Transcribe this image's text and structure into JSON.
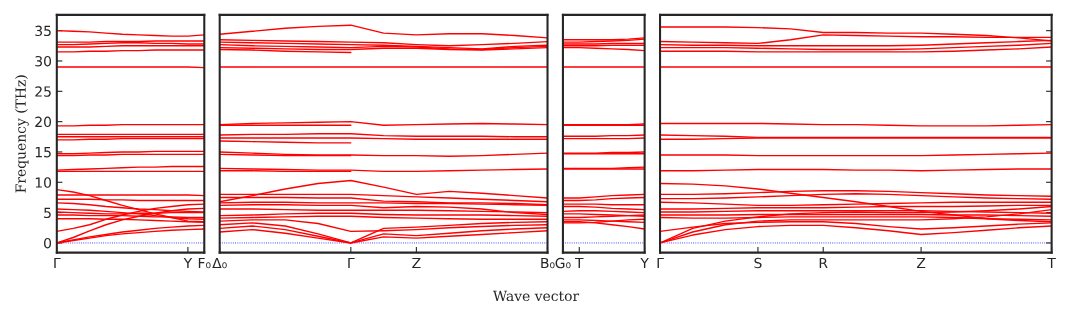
{
  "chart_data": [
    {
      "type": "line",
      "ylabel": "Frequency (THz)",
      "ylim": [
        -1.6,
        37.6
      ],
      "yticks": [
        0,
        5,
        10,
        15,
        20,
        25,
        30,
        35
      ],
      "grid": false,
      "legend": false,
      "ref_lines": [
        {
          "axis": "y",
          "value": 0,
          "color": "#0000ff",
          "line_style": "dotted"
        }
      ],
      "categories": [
        "Γ",
        null,
        null,
        null,
        null,
        null,
        null,
        null,
        "Y",
        "F₀"
      ],
      "series": [
        {
          "color": "#ff0000",
          "values": [
            35.0,
            34.9,
            34.8,
            34.6,
            34.4,
            34.3,
            34.2,
            34.1,
            34.1,
            34.3
          ]
        },
        {
          "color": "#ff0000",
          "values": [
            33.1,
            33.1,
            33.1,
            33.2,
            33.2,
            33.2,
            33.3,
            33.3,
            33.3,
            33.3
          ]
        },
        {
          "color": "#ff0000",
          "values": [
            32.7,
            32.7,
            32.8,
            32.9,
            33.0,
            33.0,
            32.9,
            32.9,
            32.8,
            32.8
          ]
        },
        {
          "color": "#ff0000",
          "values": [
            32.3,
            32.3,
            32.3,
            32.4,
            32.5,
            32.5,
            32.5,
            32.5,
            32.5,
            32.5
          ]
        },
        {
          "color": "#ff0000",
          "values": [
            31.5,
            31.5,
            31.6,
            31.6,
            31.7,
            31.7,
            31.8,
            31.8,
            31.8,
            31.8
          ]
        },
        {
          "color": "#ff0000",
          "values": [
            29.0,
            29.0,
            29.0,
            29.0,
            29.0,
            29.0,
            29.0,
            29.0,
            29.0,
            28.9
          ]
        },
        {
          "color": "#ff0000",
          "values": [
            19.3,
            19.3,
            19.4,
            19.4,
            19.5,
            19.5,
            19.5,
            19.5,
            19.5,
            19.5
          ]
        },
        {
          "color": "#ff0000",
          "values": [
            17.9,
            17.9,
            17.9,
            17.9,
            17.9,
            17.9,
            17.9,
            17.9,
            17.9,
            17.9
          ]
        },
        {
          "color": "#ff0000",
          "values": [
            17.5,
            17.5,
            17.5,
            17.5,
            17.5,
            17.5,
            17.5,
            17.5,
            17.5,
            17.5
          ]
        },
        {
          "color": "#ff0000",
          "values": [
            17.0,
            17.0,
            17.1,
            17.1,
            17.2,
            17.2,
            17.2,
            17.2,
            17.2,
            17.2
          ]
        },
        {
          "color": "#ff0000",
          "values": [
            14.4,
            14.4,
            14.5,
            14.5,
            14.6,
            14.6,
            14.6,
            14.6,
            14.6,
            14.6
          ]
        },
        {
          "color": "#ff0000",
          "values": [
            14.7,
            14.7,
            14.8,
            14.9,
            15.0,
            15.0,
            15.1,
            15.1,
            15.1,
            15.1
          ]
        },
        {
          "color": "#ff0000",
          "values": [
            11.8,
            11.8,
            11.8,
            11.8,
            11.8,
            11.8,
            11.8,
            11.8,
            11.8,
            11.8
          ]
        },
        {
          "color": "#ff0000",
          "values": [
            12.0,
            12.1,
            12.2,
            12.3,
            12.4,
            12.5,
            12.5,
            12.6,
            12.6,
            12.6
          ]
        },
        {
          "color": "#ff0000",
          "values": [
            8.8,
            8.4,
            7.8,
            7.0,
            6.2,
            5.5,
            4.8,
            4.2,
            3.6,
            3.5
          ]
        },
        {
          "color": "#ff0000",
          "values": [
            7.9,
            7.9,
            7.9,
            7.9,
            7.9,
            7.9,
            7.9,
            7.9,
            7.9,
            7.8
          ]
        },
        {
          "color": "#ff0000",
          "values": [
            7.2,
            7.2,
            7.2,
            7.1,
            7.1,
            7.0,
            7.0,
            7.0,
            7.0,
            7.0
          ]
        },
        {
          "color": "#ff0000",
          "values": [
            6.6,
            6.5,
            6.3,
            6.0,
            5.8,
            5.6,
            5.5,
            5.3,
            5.2,
            5.1
          ]
        },
        {
          "color": "#ff0000",
          "values": [
            5.6,
            5.5,
            5.4,
            5.2,
            5.0,
            4.8,
            4.5,
            4.2,
            4.0,
            3.9
          ]
        },
        {
          "color": "#ff0000",
          "values": [
            5.1,
            5.0,
            4.9,
            4.8,
            4.8,
            4.9,
            4.9,
            5.0,
            5.0,
            5.0
          ]
        },
        {
          "color": "#ff0000",
          "values": [
            4.6,
            4.6,
            4.5,
            4.5,
            4.5,
            4.4,
            4.3,
            4.3,
            4.2,
            4.2
          ]
        },
        {
          "color": "#ff0000",
          "values": [
            4.0,
            4.0,
            4.0,
            3.9,
            3.9,
            3.8,
            3.7,
            3.6,
            3.5,
            3.4
          ]
        },
        {
          "color": "#ff0000",
          "values": [
            1.9,
            2.4,
            3.0,
            3.9,
            4.6,
            5.2,
            5.7,
            6.0,
            6.3,
            6.4
          ]
        },
        {
          "color": "#ff0000",
          "values": [
            0,
            0.9,
            2.0,
            3.0,
            3.8,
            4.4,
            4.9,
            5.3,
            5.6,
            5.7
          ]
        },
        {
          "color": "#ff0000",
          "values": [
            0,
            0.5,
            1.0,
            1.4,
            1.8,
            2.1,
            2.4,
            2.6,
            2.8,
            2.9
          ]
        },
        {
          "color": "#ff0000",
          "values": [
            0,
            0.4,
            0.8,
            1.2,
            1.5,
            1.7,
            1.9,
            2.1,
            2.2,
            2.3
          ]
        }
      ]
    },
    {
      "type": "line",
      "ylim": [
        -1.6,
        37.6
      ],
      "yticks": [
        0,
        5,
        10,
        15,
        20,
        25,
        30,
        35
      ],
      "tick_labels": "x",
      "grid": false,
      "legend": false,
      "ref_lines": [
        {
          "axis": "y",
          "value": 0,
          "color": "#0000ff",
          "line_style": "dotted"
        }
      ],
      "categories": [
        "Δ₀",
        null,
        null,
        null,
        "Γ",
        null,
        "Z",
        null,
        null,
        null,
        "B₀"
      ],
      "series": [
        {
          "color": "#ff0000",
          "values": [
            34.4,
            34.9,
            35.4,
            35.7,
            35.9,
            34.6,
            34.3,
            34.5,
            34.5,
            34.2,
            33.8
          ]
        },
        {
          "color": "#ff0000",
          "values": [
            33.5,
            33.4,
            33.3,
            33.2,
            33.1,
            33.0,
            32.7,
            32.5,
            32.7,
            32.9,
            33.2
          ]
        },
        {
          "color": "#ff0000",
          "values": [
            33.1,
            33.0,
            32.9,
            32.8,
            32.7,
            32.6,
            32.4,
            32.2,
            32.0,
            32.4,
            32.6
          ]
        },
        {
          "color": "#ff0000",
          "values": [
            32.7,
            32.5,
            32.4,
            32.3,
            32.2,
            32.4,
            32.3,
            32.0,
            31.9,
            32.2,
            32.4
          ]
        },
        {
          "color": "#ff0000",
          "values": [
            32.2,
            32.1,
            32.0,
            31.9,
            31.9,
            32.1,
            32.1,
            31.9,
            31.8,
            32.0,
            32.2
          ]
        },
        {
          "color": "#ff0000",
          "values": [
            31.9,
            31.8,
            31.6,
            31.5,
            31.4,
            null,
            null,
            null,
            null,
            null,
            null
          ]
        },
        {
          "color": "#ff0000",
          "values": [
            29.0,
            29.0,
            29.0,
            29.0,
            29.0,
            29.0,
            29.0,
            29.0,
            29.0,
            29.0,
            29.0
          ]
        },
        {
          "color": "#ff0000",
          "values": [
            19.5,
            19.7,
            19.8,
            19.9,
            20.0,
            19.4,
            19.5,
            19.6,
            19.7,
            19.6,
            19.5
          ]
        },
        {
          "color": "#ff0000",
          "values": [
            19.4,
            19.4,
            19.4,
            19.4,
            19.4,
            null,
            null,
            null,
            null,
            null,
            null
          ]
        },
        {
          "color": "#ff0000",
          "values": [
            17.8,
            17.9,
            17.9,
            18.0,
            18.0,
            17.7,
            17.6,
            17.6,
            17.6,
            17.5,
            17.5
          ]
        },
        {
          "color": "#ff0000",
          "values": [
            17.3,
            17.3,
            17.3,
            17.3,
            17.3,
            17.2,
            17.1,
            17.1,
            17.1,
            17.1,
            17.1
          ]
        },
        {
          "color": "#ff0000",
          "values": [
            16.8,
            16.7,
            16.6,
            16.5,
            16.5,
            null,
            null,
            null,
            null,
            null,
            null
          ]
        },
        {
          "color": "#ff0000",
          "values": [
            15.0,
            14.8,
            14.6,
            14.5,
            14.5,
            14.4,
            14.4,
            14.3,
            14.4,
            14.6,
            14.8
          ]
        },
        {
          "color": "#ff0000",
          "values": [
            14.6,
            14.5,
            14.4,
            14.4,
            14.4,
            null,
            null,
            null,
            null,
            null,
            null
          ]
        },
        {
          "color": "#ff0000",
          "values": [
            12.3,
            12.2,
            12.1,
            12.0,
            12.0,
            11.8,
            11.8,
            11.9,
            12.0,
            12.1,
            12.2
          ]
        },
        {
          "color": "#ff0000",
          "values": [
            11.9,
            11.9,
            11.8,
            11.8,
            11.8,
            null,
            null,
            null,
            null,
            null,
            null
          ]
        },
        {
          "color": "#ff0000",
          "values": [
            6.8,
            7.8,
            8.9,
            9.8,
            10.3,
            9.2,
            8.0,
            8.5,
            8.2,
            7.8,
            7.4
          ]
        },
        {
          "color": "#ff0000",
          "values": [
            8.0,
            8.0,
            8.0,
            8.0,
            8.0,
            7.8,
            7.6,
            7.4,
            7.2,
            7.0,
            6.8
          ]
        },
        {
          "color": "#ff0000",
          "values": [
            7.5,
            7.5,
            7.5,
            7.4,
            7.4,
            6.9,
            6.8,
            6.6,
            6.6,
            6.5,
            6.3
          ]
        },
        {
          "color": "#ff0000",
          "values": [
            6.6,
            6.7,
            6.7,
            6.6,
            6.6,
            6.6,
            6.5,
            6.5,
            6.4,
            6.3,
            6.2
          ]
        },
        {
          "color": "#ff0000",
          "values": [
            6.2,
            6.3,
            6.3,
            6.2,
            6.2,
            5.8,
            6.0,
            5.9,
            5.6,
            5.0,
            4.7
          ]
        },
        {
          "color": "#ff0000",
          "values": [
            5.6,
            5.6,
            5.5,
            5.4,
            5.4,
            5.4,
            5.4,
            5.3,
            5.2,
            5.1,
            5.0
          ]
        },
        {
          "color": "#ff0000",
          "values": [
            4.5,
            4.6,
            4.8,
            4.9,
            4.9,
            4.7,
            4.6,
            4.6,
            4.6,
            4.5,
            4.4
          ]
        },
        {
          "color": "#ff0000",
          "values": [
            4.1,
            4.2,
            4.3,
            4.4,
            4.4,
            4.2,
            4.1,
            4.0,
            3.9,
            3.9,
            3.9
          ]
        },
        {
          "color": "#ff0000",
          "values": [
            3.6,
            3.8,
            3.8,
            3.2,
            1.9,
            2.0,
            2.2,
            2.5,
            2.7,
            2.9,
            3.0
          ]
        },
        {
          "color": "#ff0000",
          "values": [
            1.8,
            2.2,
            1.6,
            0.8,
            0,
            2.4,
            2.6,
            2.9,
            3.2,
            3.4,
            3.5
          ]
        },
        {
          "color": "#ff0000",
          "values": [
            2.4,
            2.8,
            2.2,
            1.1,
            0,
            1.5,
            1.2,
            1.6,
            2.0,
            2.3,
            2.5
          ]
        },
        {
          "color": "#ff0000",
          "values": [
            3.0,
            3.3,
            2.8,
            1.5,
            0,
            1.0,
            0.8,
            1.1,
            1.4,
            1.7,
            2.0
          ]
        }
      ]
    },
    {
      "type": "line",
      "xlabel": "Wave vector",
      "ylim": [
        -1.6,
        37.6
      ],
      "yticks": [
        0,
        5,
        10,
        15,
        20,
        25,
        30,
        35
      ],
      "tick_labels": "x",
      "grid": false,
      "legend": false,
      "ref_lines": [
        {
          "axis": "y",
          "value": 0,
          "color": "#0000ff",
          "line_style": "dotted"
        }
      ],
      "categories": [
        "G₀",
        "T",
        null,
        null,
        null,
        "Y"
      ],
      "series": [
        {
          "color": "#ff0000",
          "values": [
            33.5,
            33.5,
            33.5,
            33.5,
            33.6,
            33.8
          ]
        },
        {
          "color": "#ff0000",
          "values": [
            33.1,
            33.1,
            33.2,
            33.3,
            33.4,
            33.6
          ]
        },
        {
          "color": "#ff0000",
          "values": [
            32.8,
            32.8,
            32.8,
            32.9,
            32.9,
            32.9
          ]
        },
        {
          "color": "#ff0000",
          "values": [
            32.5,
            32.5,
            32.5,
            32.6,
            32.6,
            32.6
          ]
        },
        {
          "color": "#ff0000",
          "values": [
            32.2,
            32.2,
            32.1,
            32.0,
            31.9,
            31.7
          ]
        },
        {
          "color": "#ff0000",
          "values": [
            29.0,
            29.0,
            29.0,
            29.0,
            29.0,
            29.0
          ]
        },
        {
          "color": "#ff0000",
          "values": [
            19.4,
            19.4,
            19.4,
            19.4,
            19.4,
            19.4
          ]
        },
        {
          "color": "#ff0000",
          "values": [
            19.5,
            19.5,
            19.5,
            19.5,
            19.5,
            19.6
          ]
        },
        {
          "color": "#ff0000",
          "values": [
            17.6,
            17.6,
            17.6,
            17.7,
            17.7,
            17.8
          ]
        },
        {
          "color": "#ff0000",
          "values": [
            17.2,
            17.2,
            17.2,
            17.2,
            17.2,
            17.3
          ]
        },
        {
          "color": "#ff0000",
          "values": [
            14.7,
            14.7,
            14.7,
            14.7,
            14.7,
            14.7
          ]
        },
        {
          "color": "#ff0000",
          "values": [
            14.8,
            14.8,
            14.8,
            14.9,
            14.9,
            15.0
          ]
        },
        {
          "color": "#ff0000",
          "values": [
            12.2,
            12.2,
            12.2,
            12.2,
            12.2,
            12.2
          ]
        },
        {
          "color": "#ff0000",
          "values": [
            12.3,
            12.3,
            12.3,
            12.3,
            12.4,
            12.5
          ]
        },
        {
          "color": "#ff0000",
          "values": [
            7.4,
            7.4,
            7.6,
            7.8,
            7.9,
            8.0
          ]
        },
        {
          "color": "#ff0000",
          "values": [
            7.0,
            7.0,
            7.1,
            7.3,
            7.4,
            7.5
          ]
        },
        {
          "color": "#ff0000",
          "values": [
            6.4,
            6.4,
            6.4,
            6.3,
            6.3,
            6.3
          ]
        },
        {
          "color": "#ff0000",
          "values": [
            6.0,
            6.0,
            5.9,
            5.7,
            5.6,
            5.5
          ]
        },
        {
          "color": "#ff0000",
          "values": [
            5.2,
            5.3,
            5.3,
            5.2,
            5.1,
            5.0
          ]
        },
        {
          "color": "#ff0000",
          "values": [
            4.8,
            4.8,
            4.7,
            4.6,
            4.5,
            4.4
          ]
        },
        {
          "color": "#ff0000",
          "values": [
            4.2,
            4.2,
            4.3,
            4.4,
            4.5,
            4.6
          ]
        },
        {
          "color": "#ff0000",
          "values": [
            3.8,
            3.8,
            3.7,
            3.6,
            3.5,
            3.4
          ]
        },
        {
          "color": "#ff0000",
          "values": [
            3.5,
            3.5,
            3.3,
            3.0,
            2.7,
            2.3
          ]
        },
        {
          "color": "#ff0000",
          "values": [
            3.3,
            3.3,
            3.4,
            3.6,
            3.8,
            3.9
          ]
        }
      ]
    },
    {
      "type": "line",
      "ylim": [
        -1.6,
        37.6
      ],
      "yticks": [
        0,
        5,
        10,
        15,
        20,
        25,
        30,
        35
      ],
      "tick_labels": "x",
      "grid": false,
      "legend": false,
      "ref_lines": [
        {
          "axis": "y",
          "value": 0,
          "color": "#0000ff",
          "line_style": "dotted"
        }
      ],
      "categories": [
        "Γ",
        null,
        null,
        "S",
        null,
        "R",
        null,
        null,
        "Z",
        null,
        null,
        null,
        "T"
      ],
      "series": [
        {
          "color": "#ff0000",
          "values": [
            35.6,
            35.6,
            35.6,
            35.5,
            35.3,
            34.7,
            34.7,
            34.6,
            34.6,
            34.4,
            34.2,
            33.8,
            33.3
          ]
        },
        {
          "color": "#ff0000",
          "values": [
            33.2,
            33.1,
            33.0,
            32.9,
            33.5,
            34.3,
            34.2,
            34.1,
            34.0,
            34.0,
            33.9,
            33.9,
            33.9
          ]
        },
        {
          "color": "#ff0000",
          "values": [
            32.7,
            32.6,
            32.6,
            32.5,
            32.5,
            32.5,
            32.5,
            32.5,
            32.6,
            32.8,
            33.0,
            33.2,
            33.4
          ]
        },
        {
          "color": "#ff0000",
          "values": [
            32.2,
            32.2,
            32.2,
            32.1,
            32.0,
            31.9,
            31.9,
            31.9,
            32.0,
            32.2,
            32.4,
            32.6,
            32.9
          ]
        },
        {
          "color": "#ff0000",
          "values": [
            31.6,
            31.6,
            31.6,
            31.5,
            31.5,
            31.5,
            31.5,
            31.5,
            31.5,
            31.6,
            31.8,
            32.0,
            32.3
          ]
        },
        {
          "color": "#ff0000",
          "values": [
            29.0,
            29.0,
            29.0,
            29.0,
            29.0,
            29.0,
            29.0,
            29.0,
            29.0,
            29.0,
            29.0,
            29.0,
            29.0
          ]
        },
        {
          "color": "#ff0000",
          "values": [
            19.7,
            19.7,
            19.7,
            19.7,
            19.6,
            19.5,
            19.5,
            19.4,
            19.3,
            19.3,
            19.3,
            19.4,
            19.5
          ]
        },
        {
          "color": "#ff0000",
          "values": [
            17.8,
            17.7,
            17.6,
            17.4,
            17.4,
            17.4,
            17.4,
            17.4,
            17.4,
            17.4,
            17.4,
            17.4,
            17.4
          ]
        },
        {
          "color": "#ff0000",
          "values": [
            17.1,
            17.1,
            17.2,
            17.3,
            17.3,
            17.3,
            17.3,
            17.3,
            17.3,
            17.3,
            17.3,
            17.3,
            17.3
          ]
        },
        {
          "color": "#ff0000",
          "values": [
            14.5,
            14.5,
            14.5,
            14.4,
            14.4,
            14.4,
            14.4,
            14.4,
            14.4,
            14.5,
            14.6,
            14.7,
            14.8
          ]
        },
        {
          "color": "#ff0000",
          "values": [
            11.9,
            11.9,
            12.0,
            12.1,
            12.1,
            12.1,
            12.0,
            12.0,
            11.9,
            12.0,
            12.1,
            12.2,
            12.2
          ]
        },
        {
          "color": "#ff0000",
          "values": [
            9.8,
            9.7,
            9.4,
            8.9,
            8.2,
            7.5,
            6.8,
            6.0,
            5.2,
            4.6,
            4.0,
            3.7,
            3.5
          ]
        },
        {
          "color": "#ff0000",
          "values": [
            8.0,
            8.0,
            8.1,
            8.3,
            8.5,
            8.6,
            8.6,
            8.5,
            8.3,
            8.1,
            7.9,
            7.8,
            7.7
          ]
        },
        {
          "color": "#ff0000",
          "values": [
            7.3,
            7.3,
            7.4,
            7.6,
            7.8,
            8.0,
            8.1,
            8.0,
            7.8,
            7.6,
            7.4,
            7.3,
            7.2
          ]
        },
        {
          "color": "#ff0000",
          "values": [
            6.7,
            6.6,
            6.4,
            6.2,
            6.2,
            6.3,
            6.4,
            6.5,
            6.6,
            6.7,
            6.7,
            6.7,
            6.7
          ]
        },
        {
          "color": "#ff0000",
          "values": [
            5.6,
            5.6,
            5.7,
            5.8,
            5.8,
            5.8,
            5.9,
            6.0,
            6.0,
            6.0,
            6.1,
            6.2,
            6.2
          ]
        },
        {
          "color": "#ff0000",
          "values": [
            5.1,
            5.1,
            5.2,
            5.3,
            5.3,
            5.3,
            5.3,
            5.3,
            5.3,
            5.2,
            5.1,
            5.0,
            4.9
          ]
        },
        {
          "color": "#ff0000",
          "values": [
            4.6,
            4.6,
            4.6,
            4.7,
            4.7,
            4.7,
            4.7,
            4.7,
            4.7,
            4.6,
            4.6,
            4.5,
            4.4
          ]
        },
        {
          "color": "#ff0000",
          "values": [
            4.2,
            4.1,
            4.1,
            4.2,
            4.3,
            4.3,
            4.3,
            4.3,
            4.3,
            4.2,
            4.0,
            3.9,
            3.8
          ]
        },
        {
          "color": "#ff0000",
          "values": [
            1.9,
            2.6,
            3.2,
            3.4,
            3.5,
            3.5,
            3.2,
            2.7,
            2.3,
            2.5,
            2.8,
            3.1,
            3.3
          ]
        },
        {
          "color": "#ff0000",
          "values": [
            0,
            1.3,
            2.2,
            2.7,
            2.9,
            2.9,
            2.5,
            2.0,
            1.4,
            1.7,
            2.1,
            2.5,
            2.8
          ]
        },
        {
          "color": "#ff0000",
          "values": [
            0,
            1.8,
            3.0,
            3.6,
            3.8,
            3.8,
            3.8,
            3.8,
            3.8,
            4.0,
            4.3,
            4.8,
            5.5
          ]
        },
        {
          "color": "#ff0000",
          "values": [
            0,
            2.4,
            3.6,
            4.3,
            4.8,
            5.0,
            5.1,
            5.0,
            5.0,
            5.1,
            5.3,
            5.6,
            6.0
          ]
        }
      ]
    }
  ]
}
